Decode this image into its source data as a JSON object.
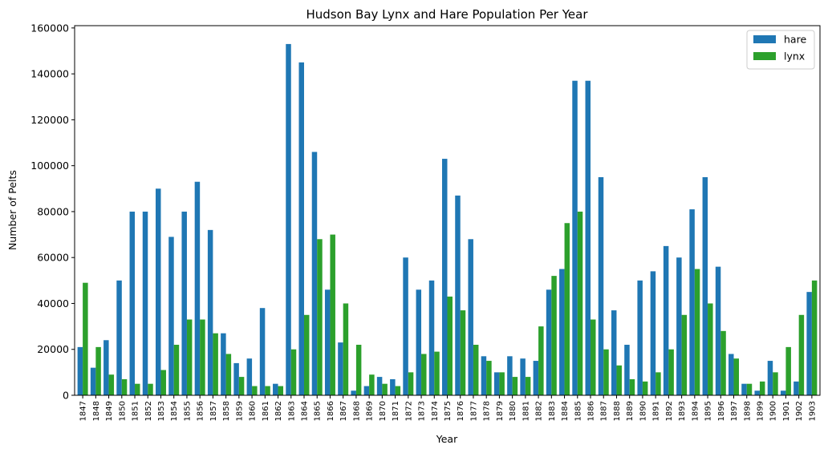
{
  "chart_data": {
    "type": "bar",
    "title": "Hudson Bay Lynx and Hare Population Per Year",
    "xlabel": "Year",
    "ylabel": "Number of Pelts",
    "ylim": [
      0,
      161000
    ],
    "yticks": [
      "0",
      "20000",
      "40000",
      "60000",
      "80000",
      "100000",
      "120000",
      "140000",
      "160000"
    ],
    "legend_position": "top-right",
    "grid": false,
    "categories": [
      "1847",
      "1848",
      "1849",
      "1850",
      "1851",
      "1852",
      "1853",
      "1854",
      "1855",
      "1856",
      "1857",
      "1858",
      "1859",
      "1860",
      "1861",
      "1862",
      "1863",
      "1864",
      "1865",
      "1866",
      "1867",
      "1868",
      "1869",
      "1870",
      "1871",
      "1872",
      "1873",
      "1874",
      "1875",
      "1876",
      "1877",
      "1878",
      "1879",
      "1880",
      "1881",
      "1882",
      "1883",
      "1884",
      "1885",
      "1886",
      "1887",
      "1888",
      "1889",
      "1890",
      "1891",
      "1892",
      "1893",
      "1894",
      "1895",
      "1896",
      "1897",
      "1898",
      "1899",
      "1900",
      "1901",
      "1902",
      "1903"
    ],
    "series": [
      {
        "name": "hare",
        "color": "#1f77b4",
        "values": [
          21000,
          12000,
          24000,
          50000,
          80000,
          80000,
          90000,
          69000,
          80000,
          93000,
          72000,
          27000,
          14000,
          16000,
          38000,
          5000,
          153000,
          145000,
          106000,
          46000,
          23000,
          2000,
          4000,
          8000,
          7000,
          60000,
          46000,
          50000,
          103000,
          87000,
          68000,
          17000,
          10000,
          17000,
          16000,
          15000,
          46000,
          55000,
          137000,
          137000,
          95000,
          37000,
          22000,
          50000,
          54000,
          65000,
          60000,
          81000,
          95000,
          56000,
          18000,
          5000,
          2000,
          15000,
          2000,
          6000,
          45000
        ]
      },
      {
        "name": "lynx",
        "color": "#2ca02c",
        "values": [
          49000,
          21000,
          9000,
          7000,
          5000,
          5000,
          11000,
          22000,
          33000,
          33000,
          27000,
          18000,
          8000,
          4000,
          4000,
          4000,
          20000,
          35000,
          68000,
          70000,
          40000,
          22000,
          9000,
          5000,
          4000,
          10000,
          18000,
          19000,
          43000,
          37000,
          22000,
          15000,
          10000,
          8000,
          8000,
          30000,
          52000,
          75000,
          80000,
          33000,
          20000,
          13000,
          7000,
          6000,
          10000,
          20000,
          35000,
          55000,
          40000,
          28000,
          16000,
          5000,
          6000,
          10000,
          21000,
          35000,
          50000
        ]
      }
    ]
  }
}
